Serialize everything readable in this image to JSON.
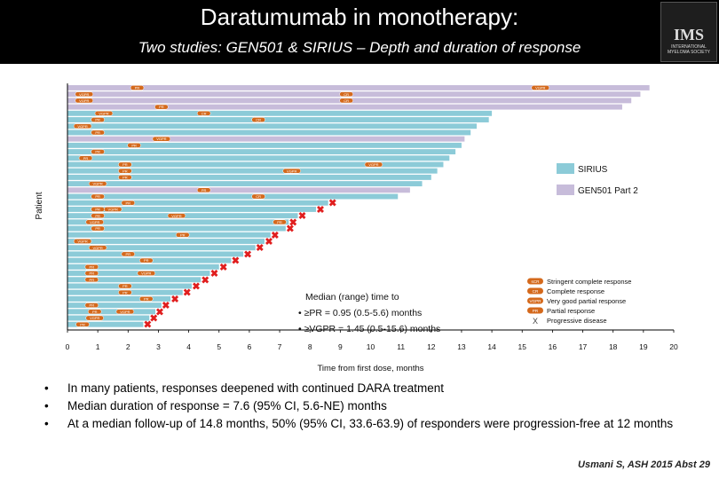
{
  "header": {
    "title": "Daratumumab in monotherapy:",
    "subtitle": "Two studies: GEN501 & SIRIUS – Depth and duration of response",
    "logo_text": "IMS",
    "logo_caption": "INTERNATIONAL MYELOMA SOCIETY"
  },
  "colors": {
    "sirius": "#8CCBD8",
    "gen501": "#C7BCDA",
    "marker": "#D4691C",
    "progression": "#E01E1E"
  },
  "chart_data": {
    "type": "swimmer",
    "xlabel": "Time from first dose, months",
    "ylabel": "Patient",
    "xlim": [
      0,
      20
    ],
    "x_ticks": [
      "0",
      "1",
      "2",
      "3",
      "4",
      "5",
      "6",
      "7",
      "8",
      "9",
      "10",
      "11",
      "12",
      "13",
      "14",
      "15",
      "16",
      "17",
      "18",
      "19",
      "20"
    ],
    "series": [
      {
        "name": "SIRIUS"
      },
      {
        "name": "GEN501 Part 2"
      }
    ],
    "response_key": [
      {
        "code": "sCR",
        "label": "Stringent complete response"
      },
      {
        "code": "CR",
        "label": "Complete response"
      },
      {
        "code": "VGPR",
        "label": "Very good partial response"
      },
      {
        "code": "PR",
        "label": "Partial response"
      },
      {
        "code": "X",
        "label": "Progressive disease"
      }
    ],
    "annotation": {
      "heading": "Median (range) time to",
      "line1": "•  ≥PR = 0.95 (0.5-5.6) months",
      "line2": "•  ≥VGPR = 1.45 (0.5-15.6) months"
    },
    "patients": [
      {
        "study": "GEN501",
        "duration": 19.2,
        "pd": false,
        "responses": [
          {
            "code": "PR",
            "t": 2.3
          },
          {
            "code": "VGPR",
            "t": 15.6
          }
        ]
      },
      {
        "study": "GEN501",
        "duration": 18.9,
        "pd": false,
        "responses": [
          {
            "code": "VGPR",
            "t": 0.55
          },
          {
            "code": "CR",
            "t": 9.2
          }
        ]
      },
      {
        "study": "GEN501",
        "duration": 18.6,
        "pd": false,
        "responses": [
          {
            "code": "VGPR",
            "t": 0.55
          },
          {
            "code": "CR",
            "t": 9.2
          }
        ]
      },
      {
        "study": "GEN501",
        "duration": 18.3,
        "pd": false,
        "responses": [
          {
            "code": "PR",
            "t": 3.1
          }
        ]
      },
      {
        "study": "SIRIUS",
        "duration": 14.0,
        "pd": false,
        "responses": [
          {
            "code": "VGPR",
            "t": 1.2
          },
          {
            "code": "CR",
            "t": 4.5
          }
        ]
      },
      {
        "study": "SIRIUS",
        "duration": 13.9,
        "pd": false,
        "responses": [
          {
            "code": "PR",
            "t": 1.0
          },
          {
            "code": "CR",
            "t": 6.3
          }
        ]
      },
      {
        "study": "SIRIUS",
        "duration": 13.5,
        "pd": false,
        "responses": [
          {
            "code": "VGPR",
            "t": 0.5
          }
        ]
      },
      {
        "study": "SIRIUS",
        "duration": 13.3,
        "pd": false,
        "responses": [
          {
            "code": "PR",
            "t": 1.0
          }
        ]
      },
      {
        "study": "GEN501",
        "duration": 13.1,
        "pd": false,
        "responses": [
          {
            "code": "VGPR",
            "t": 3.1
          }
        ]
      },
      {
        "study": "SIRIUS",
        "duration": 13.0,
        "pd": false,
        "responses": [
          {
            "code": "PR",
            "t": 2.2
          }
        ]
      },
      {
        "study": "SIRIUS",
        "duration": 12.8,
        "pd": false,
        "responses": [
          {
            "code": "PR",
            "t": 1.0
          }
        ]
      },
      {
        "study": "SIRIUS",
        "duration": 12.6,
        "pd": false,
        "responses": [
          {
            "code": "PR",
            "t": 0.6
          }
        ]
      },
      {
        "study": "SIRIUS",
        "duration": 12.4,
        "pd": false,
        "responses": [
          {
            "code": "PR",
            "t": 1.9
          },
          {
            "code": "VGPR",
            "t": 10.1
          }
        ]
      },
      {
        "study": "SIRIUS",
        "duration": 12.2,
        "pd": false,
        "responses": [
          {
            "code": "PR",
            "t": 1.9
          },
          {
            "code": "VGPR",
            "t": 7.4
          }
        ]
      },
      {
        "study": "SIRIUS",
        "duration": 12.0,
        "pd": false,
        "responses": [
          {
            "code": "PR",
            "t": 1.9
          }
        ]
      },
      {
        "study": "SIRIUS",
        "duration": 11.7,
        "pd": false,
        "responses": [
          {
            "code": "VGPR",
            "t": 1.0
          }
        ]
      },
      {
        "study": "GEN501",
        "duration": 11.3,
        "pd": false,
        "responses": [
          {
            "code": "PR",
            "t": 4.5
          }
        ]
      },
      {
        "study": "SIRIUS",
        "duration": 10.9,
        "pd": false,
        "responses": [
          {
            "code": "PR",
            "t": 1.0
          },
          {
            "code": "CR",
            "t": 6.3
          }
        ]
      },
      {
        "study": "SIRIUS",
        "duration": 8.6,
        "pd": true,
        "responses": [
          {
            "code": "PR",
            "t": 2.0
          }
        ]
      },
      {
        "study": "SIRIUS",
        "duration": 8.2,
        "pd": true,
        "responses": [
          {
            "code": "PR",
            "t": 1.0
          },
          {
            "code": "VGPR",
            "t": 1.5
          }
        ]
      },
      {
        "study": "SIRIUS",
        "duration": 7.6,
        "pd": true,
        "responses": [
          {
            "code": "PR",
            "t": 1.0
          },
          {
            "code": "VGPR",
            "t": 3.6
          }
        ]
      },
      {
        "study": "SIRIUS",
        "duration": 7.3,
        "pd": true,
        "responses": [
          {
            "code": "VGPR",
            "t": 0.9
          },
          {
            "code": "PR",
            "t": 7.0
          }
        ]
      },
      {
        "study": "SIRIUS",
        "duration": 7.2,
        "pd": true,
        "responses": [
          {
            "code": "PR",
            "t": 1.0
          }
        ]
      },
      {
        "study": "SIRIUS",
        "duration": 6.7,
        "pd": true,
        "responses": [
          {
            "code": "PR",
            "t": 3.8
          }
        ]
      },
      {
        "study": "SIRIUS",
        "duration": 6.5,
        "pd": true,
        "responses": [
          {
            "code": "VGPR",
            "t": 0.5
          }
        ]
      },
      {
        "study": "SIRIUS",
        "duration": 6.2,
        "pd": true,
        "responses": [
          {
            "code": "VGPR",
            "t": 1.0
          }
        ]
      },
      {
        "study": "SIRIUS",
        "duration": 5.8,
        "pd": true,
        "responses": [
          {
            "code": "PR",
            "t": 2.0
          }
        ]
      },
      {
        "study": "SIRIUS",
        "duration": 5.4,
        "pd": true,
        "responses": [
          {
            "code": "PR",
            "t": 2.6
          }
        ]
      },
      {
        "study": "SIRIUS",
        "duration": 5.0,
        "pd": true,
        "responses": [
          {
            "code": "PR",
            "t": 0.8
          }
        ]
      },
      {
        "study": "SIRIUS",
        "duration": 4.7,
        "pd": true,
        "responses": [
          {
            "code": "PR",
            "t": 0.8
          },
          {
            "code": "VGPR",
            "t": 2.6
          }
        ]
      },
      {
        "study": "SIRIUS",
        "duration": 4.4,
        "pd": true,
        "responses": [
          {
            "code": "PR",
            "t": 0.8
          }
        ]
      },
      {
        "study": "SIRIUS",
        "duration": 4.1,
        "pd": true,
        "responses": [
          {
            "code": "PR",
            "t": 1.9
          }
        ]
      },
      {
        "study": "SIRIUS",
        "duration": 3.8,
        "pd": true,
        "responses": [
          {
            "code": "PR",
            "t": 1.9
          }
        ]
      },
      {
        "study": "SIRIUS",
        "duration": 3.4,
        "pd": true,
        "responses": [
          {
            "code": "PR",
            "t": 2.6
          }
        ]
      },
      {
        "study": "SIRIUS",
        "duration": 3.1,
        "pd": true,
        "responses": [
          {
            "code": "PR",
            "t": 0.8
          }
        ]
      },
      {
        "study": "SIRIUS",
        "duration": 2.9,
        "pd": true,
        "responses": [
          {
            "code": "PR",
            "t": 0.9
          },
          {
            "code": "VGPR",
            "t": 1.9
          }
        ]
      },
      {
        "study": "SIRIUS",
        "duration": 2.7,
        "pd": true,
        "responses": [
          {
            "code": "VGPR",
            "t": 0.9
          }
        ]
      },
      {
        "study": "SIRIUS",
        "duration": 2.5,
        "pd": true,
        "responses": [
          {
            "code": "PR",
            "t": 0.5
          }
        ]
      }
    ]
  },
  "bullets": [
    "In many patients, responses deepened with continued DARA treatment",
    "Median duration of response = 7.6 (95% CI, 5.6-NE) months",
    "At a median follow-up of 14.8 months, 50% (95% CI, 33.6-63.9) of responders were progression-free at 12 months"
  ],
  "citation": "Usmani S, ASH 2015 Abst 29"
}
